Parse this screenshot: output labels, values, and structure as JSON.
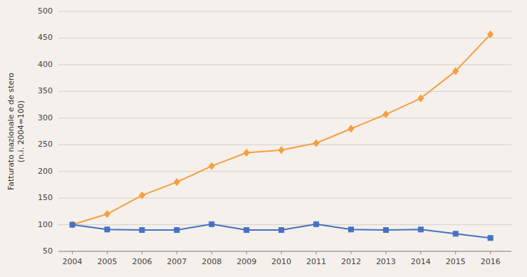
{
  "chart_data": {
    "type": "line",
    "ylabel": "Fatturato nazionale e de stero\n(n.i. 2004=100)",
    "x": [
      2004,
      2005,
      2006,
      2007,
      2008,
      2009,
      2010,
      2011,
      2012,
      2013,
      2014,
      2015,
      2016
    ],
    "xlim": [
      2003.6,
      2016.6
    ],
    "xticks": [
      2004,
      2005,
      2006,
      2007,
      2008,
      2009,
      2010,
      2011,
      2012,
      2013,
      2014,
      2015,
      2016
    ],
    "ylim": [
      50,
      500
    ],
    "yticks": [
      50,
      100,
      150,
      200,
      250,
      300,
      350,
      400,
      450,
      500
    ],
    "grid": true,
    "series": [
      {
        "color": "#F4A040",
        "marker": "diamond",
        "values": [
          100,
          120,
          155,
          180,
          210,
          235,
          240,
          253,
          280,
          307,
          337,
          388,
          457
        ]
      },
      {
        "color": "#4472C4",
        "marker": "square",
        "values": [
          100,
          91,
          90,
          90,
          101,
          90,
          90,
          101,
          91,
          90,
          91,
          83,
          75
        ]
      }
    ]
  }
}
